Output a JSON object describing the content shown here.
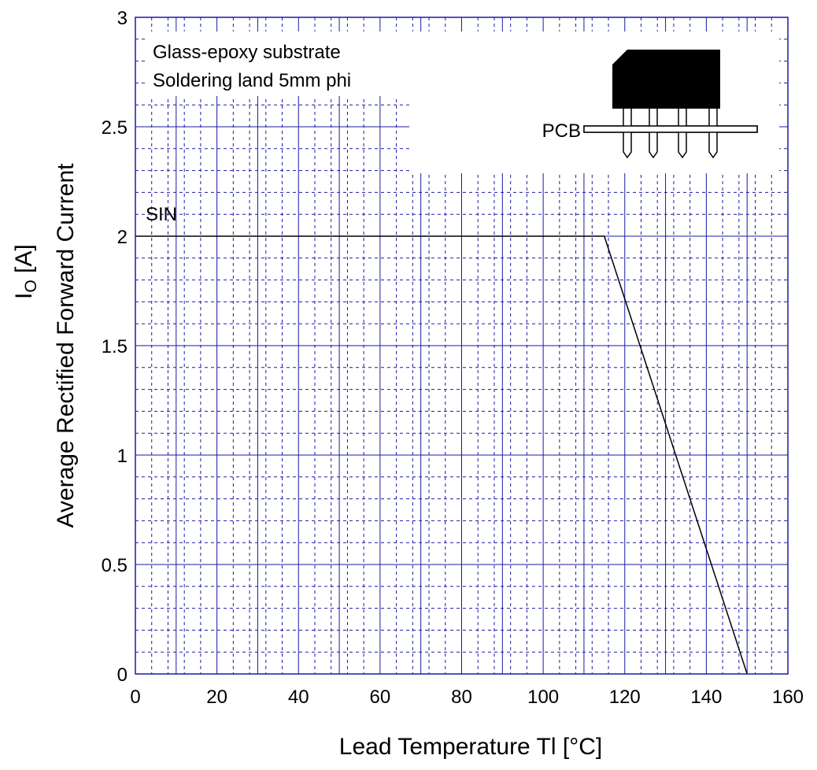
{
  "chart_data": {
    "type": "line",
    "title": "",
    "xlabel": "Lead Temperature    Tl  [°C]",
    "ylabel_line1": "Average Rectified Forward Current",
    "ylabel_symbol": "I",
    "ylabel_subscript": "O",
    "ylabel_unit": "  [A]",
    "xlim": [
      0,
      160
    ],
    "ylim": [
      0,
      3
    ],
    "x_ticks": [
      "0",
      "20",
      "40",
      "60",
      "80",
      "100",
      "120",
      "140",
      "160"
    ],
    "y_ticks": [
      "0",
      "0.5",
      "1",
      "1.5",
      "2",
      "2.5",
      "3"
    ],
    "x_tick_values": [
      0,
      20,
      40,
      60,
      80,
      100,
      120,
      140,
      160
    ],
    "y_tick_values": [
      0,
      0.5,
      1,
      1.5,
      2,
      2.5,
      3
    ],
    "grid": true,
    "grid_color": "#1a1aa6",
    "series": [
      {
        "name": "SIN",
        "color": "#000000",
        "x": [
          0,
          115,
          150
        ],
        "y": [
          2,
          2,
          0
        ]
      }
    ],
    "annotations": {
      "conditions": [
        "Glass-epoxy substrate",
        "Soldering land 5mm phi"
      ],
      "pcb_label": "PCB",
      "series_label": "SIN"
    }
  }
}
